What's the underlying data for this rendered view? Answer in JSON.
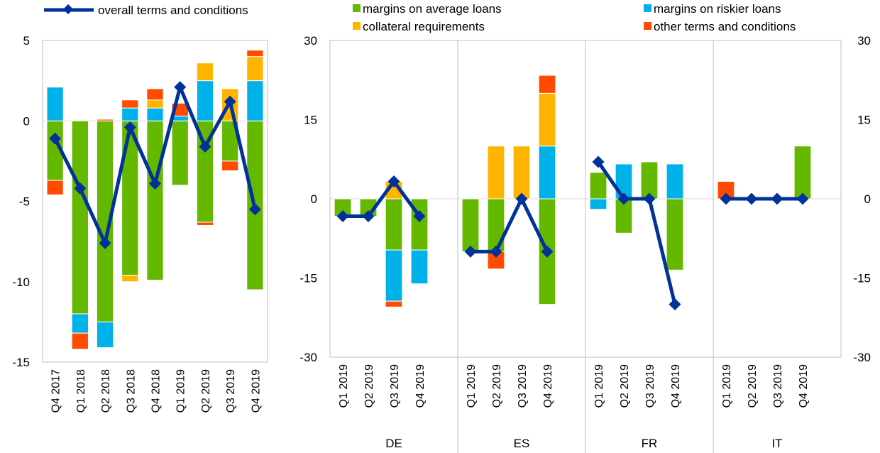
{
  "colors": {
    "margins_avg": "#65b800",
    "margins_risk": "#00b1ea",
    "collateral": "#ffb400",
    "other": "#ff4b00",
    "overall": "#003299"
  },
  "legend": {
    "overall": "overall terms and conditions",
    "margins_avg": "margins on average loans",
    "margins_risk": "margins on riskier loans",
    "collateral": "collateral requirements",
    "other": "other terms and conditions"
  },
  "chart_data": [
    {
      "type": "bar",
      "stacked": true,
      "categories": [
        "Q4 2017",
        "Q1 2018",
        "Q2 2018",
        "Q3 2018",
        "Q4 2018",
        "Q1 2019",
        "Q2 2019",
        "Q3 2019",
        "Q4 2019"
      ],
      "ylim": [
        -15,
        5
      ],
      "yticks": [
        5,
        0,
        -5,
        -10,
        -15
      ],
      "grid": false,
      "series": [
        {
          "key": "margins_avg",
          "name": "margins on average loans",
          "values": [
            -3.7,
            -12.0,
            -12.5,
            -9.6,
            -9.9,
            -4.0,
            -6.3,
            -2.5,
            -10.5
          ]
        },
        {
          "key": "margins_risk",
          "name": "margins on riskier loans",
          "values": [
            2.1,
            -1.2,
            -1.6,
            0.8,
            0.8,
            0.3,
            2.5,
            0.0,
            2.5
          ]
        },
        {
          "key": "collateral",
          "name": "collateral requirements",
          "values": [
            0.0,
            0.0,
            0.0,
            -0.4,
            0.5,
            0.0,
            1.1,
            2.0,
            1.5
          ]
        },
        {
          "key": "other",
          "name": "other terms and conditions",
          "values": [
            -0.9,
            -1.0,
            0.1,
            0.5,
            0.7,
            0.8,
            -0.2,
            -0.6,
            0.4
          ]
        }
      ],
      "line": {
        "key": "overall",
        "name": "overall terms and conditions",
        "values": [
          -1.1,
          -4.2,
          -7.6,
          -0.4,
          -3.9,
          2.1,
          -1.6,
          1.2,
          -5.5
        ]
      }
    },
    {
      "type": "bar",
      "stacked": true,
      "groups": [
        "DE",
        "ES",
        "FR",
        "IT"
      ],
      "categories": [
        "Q1 2019",
        "Q2 2019",
        "Q3 2019",
        "Q4 2019"
      ],
      "ylim": [
        -30,
        30
      ],
      "yticks": [
        30,
        15,
        0,
        -15,
        -30
      ],
      "grid": false,
      "series": [
        {
          "key": "margins_avg",
          "name": "margins on average loans",
          "values": {
            "DE": [
              -3.3,
              -3.3,
              -9.7,
              -9.7
            ],
            "ES": [
              -10.0,
              -10.0,
              0.0,
              -20.0
            ],
            "FR": [
              5.0,
              -6.5,
              7.0,
              -13.5
            ],
            "IT": [
              0.0,
              0.0,
              0.0,
              10.0
            ]
          }
        },
        {
          "key": "margins_risk",
          "name": "margins on riskier loans",
          "values": {
            "DE": [
              0.0,
              0.0,
              -9.7,
              -6.4
            ],
            "ES": [
              0.0,
              0.0,
              0.0,
              10.0
            ],
            "FR": [
              -2.0,
              6.6,
              0.0,
              6.6
            ],
            "IT": [
              0.0,
              0.0,
              0.0,
              0.0
            ]
          }
        },
        {
          "key": "collateral",
          "name": "collateral requirements",
          "values": {
            "DE": [
              0.0,
              0.0,
              3.3,
              0.0
            ],
            "ES": [
              0.0,
              10.0,
              10.0,
              10.0
            ],
            "FR": [
              0.0,
              0.0,
              0.0,
              0.0
            ],
            "IT": [
              0.0,
              0.0,
              0.0,
              0.0
            ]
          }
        },
        {
          "key": "other",
          "name": "other terms and conditions",
          "values": {
            "DE": [
              0.0,
              0.0,
              -1.1,
              0.0
            ],
            "ES": [
              0.0,
              -3.3,
              0.0,
              3.4
            ],
            "FR": [
              0.0,
              0.0,
              0.0,
              0.0
            ],
            "IT": [
              3.3,
              0.0,
              0.0,
              0.0
            ]
          }
        }
      ],
      "line": {
        "key": "overall",
        "name": "overall terms and conditions",
        "values": {
          "DE": [
            -3.3,
            -3.3,
            3.3,
            -3.3
          ],
          "ES": [
            -10.0,
            -10.0,
            0.0,
            -10.0
          ],
          "FR": [
            7.0,
            0.0,
            0.0,
            -20.0
          ],
          "IT": [
            0.0,
            0.0,
            0.0,
            0.0
          ]
        }
      }
    }
  ]
}
